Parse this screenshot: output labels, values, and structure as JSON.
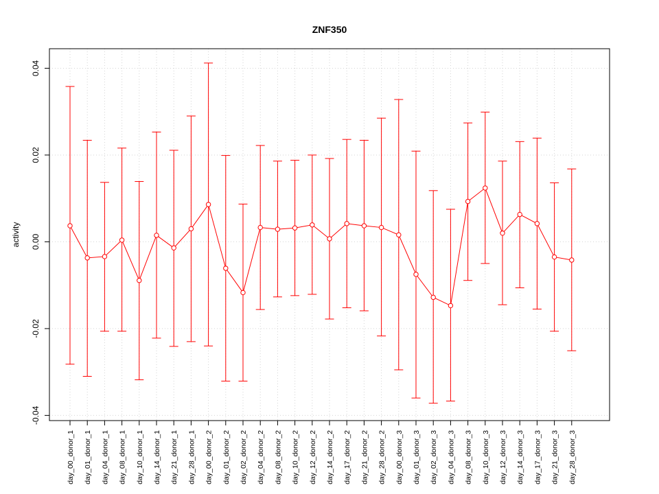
{
  "chart_data": {
    "type": "line",
    "title": "ZNF350",
    "xlabel": "",
    "ylabel": "activity",
    "ylim": [
      -0.0412,
      0.0445
    ],
    "yticks": [
      -0.04,
      -0.02,
      0.0,
      0.02,
      0.04
    ],
    "ytick_labels": [
      "-0.04",
      "-0.02",
      "0.00",
      "0.02",
      "0.04"
    ],
    "grid": true,
    "color": "#ff0000",
    "categories": [
      "day_00_donor_1",
      "day_01_donor_1",
      "day_04_donor_1",
      "day_08_donor_1",
      "day_10_donor_1",
      "day_14_donor_1",
      "day_21_donor_1",
      "day_28_donor_1",
      "day_00_donor_2",
      "day_01_donor_2",
      "day_02_donor_2",
      "day_04_donor_2",
      "day_08_donor_2",
      "day_10_donor_2",
      "day_12_donor_2",
      "day_14_donor_2",
      "day_17_donor_2",
      "day_21_donor_2",
      "day_28_donor_2",
      "day_00_donor_3",
      "day_01_donor_3",
      "day_02_donor_3",
      "day_04_donor_3",
      "day_08_donor_3",
      "day_10_donor_3",
      "day_12_donor_3",
      "day_14_donor_3",
      "day_17_donor_3",
      "day_21_donor_3",
      "day_28_donor_3"
    ],
    "series": [
      {
        "values": [
          0.0037,
          -0.0037,
          -0.0034,
          0.0004,
          -0.0089,
          0.0015,
          -0.0014,
          0.003,
          0.0086,
          -0.0061,
          -0.0117,
          0.0033,
          0.0029,
          0.0032,
          0.0039,
          0.0007,
          0.0042,
          0.0037,
          0.0033,
          0.0016,
          -0.0075,
          -0.0128,
          -0.0147,
          0.0093,
          0.0124,
          0.002,
          0.0063,
          0.0042,
          -0.0035,
          -0.0042
        ],
        "upper": [
          0.0358,
          0.0234,
          0.0137,
          0.0216,
          0.0139,
          0.0253,
          0.0211,
          0.029,
          0.0412,
          0.0199,
          0.0087,
          0.0222,
          0.0186,
          0.0188,
          0.02,
          0.0192,
          0.0236,
          0.0234,
          0.0285,
          0.0328,
          0.0209,
          0.0118,
          0.0075,
          0.0274,
          0.0299,
          0.0186,
          0.0231,
          0.0239,
          0.0136,
          0.0168
        ],
        "lower": [
          -0.0282,
          -0.031,
          -0.0206,
          -0.0206,
          -0.0318,
          -0.0222,
          -0.0241,
          -0.023,
          -0.024,
          -0.0321,
          -0.0321,
          -0.0156,
          -0.0127,
          -0.0124,
          -0.0121,
          -0.0178,
          -0.0152,
          -0.0159,
          -0.0217,
          -0.0295,
          -0.036,
          -0.0372,
          -0.0367,
          -0.0089,
          -0.005,
          -0.0145,
          -0.0106,
          -0.0155,
          -0.0206,
          -0.0251
        ]
      }
    ]
  }
}
